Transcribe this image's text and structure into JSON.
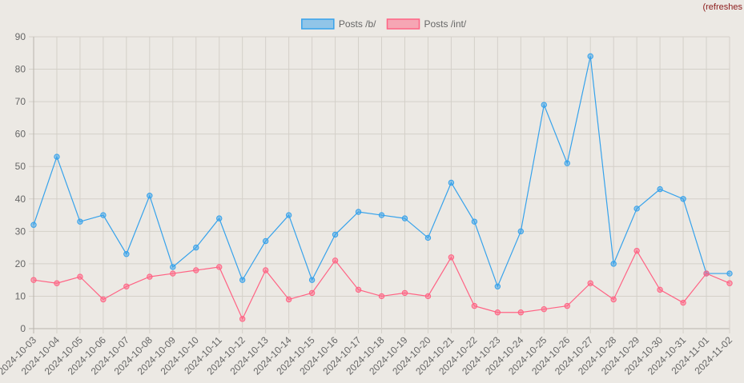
{
  "corner_note": "(refreshes",
  "chart_data": {
    "type": "line",
    "title": "",
    "xlabel": "",
    "ylabel": "",
    "ylim": [
      0,
      90
    ],
    "ytick_step": 10,
    "grid": true,
    "legend_position": "top-center",
    "categories": [
      "2024-10-03",
      "2024-10-04",
      "2024-10-05",
      "2024-10-06",
      "2024-10-07",
      "2024-10-08",
      "2024-10-09",
      "2024-10-10",
      "2024-10-11",
      "2024-10-12",
      "2024-10-13",
      "2024-10-14",
      "2024-10-15",
      "2024-10-16",
      "2024-10-17",
      "2024-10-18",
      "2024-10-19",
      "2024-10-20",
      "2024-10-21",
      "2024-10-22",
      "2024-10-23",
      "2024-10-24",
      "2024-10-25",
      "2024-10-26",
      "2024-10-27",
      "2024-10-28",
      "2024-10-29",
      "2024-10-30",
      "2024-10-31",
      "2024-11-01",
      "2024-11-02"
    ],
    "series": [
      {
        "name": "Posts /b/",
        "color": "#36a2eb",
        "values": [
          32,
          53,
          33,
          35,
          23,
          41,
          19,
          25,
          34,
          15,
          27,
          35,
          15,
          29,
          36,
          35,
          34,
          28,
          45,
          33,
          13,
          30,
          69,
          51,
          84,
          20,
          37,
          43,
          40,
          17,
          17
        ]
      },
      {
        "name": "Posts /int/",
        "color": "#ff6384",
        "values": [
          15,
          14,
          16,
          9,
          13,
          16,
          17,
          18,
          19,
          3,
          18,
          9,
          11,
          21,
          12,
          10,
          11,
          10,
          22,
          7,
          5,
          5,
          6,
          7,
          14,
          9,
          24,
          12,
          8,
          17,
          14
        ]
      }
    ]
  }
}
